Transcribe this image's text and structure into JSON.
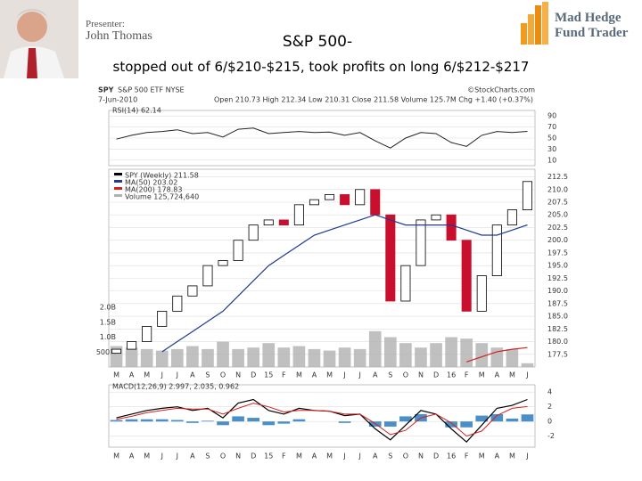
{
  "header": {
    "presenter_label": "Presenter:",
    "presenter_name": "John Thomas",
    "logo_line1": "Mad Hedge",
    "logo_line2": "Fund Trader"
  },
  "title": "S&P 500-",
  "subtitle": "stopped out of 6/$210-$215, took profits on long 6/$212-$217",
  "chart_data": [
    {
      "type": "line",
      "title": "RSI(14) 62.14",
      "ylim": [
        0,
        100
      ],
      "yticks": [
        90,
        70,
        50,
        30,
        10
      ],
      "series": [
        {
          "color": "#222222",
          "values": [
            48,
            55,
            60,
            62,
            65,
            58,
            60,
            52,
            66,
            68,
            58,
            60,
            62,
            60,
            61,
            55,
            60,
            45,
            32,
            50,
            60,
            58,
            42,
            35,
            55,
            62,
            60,
            62.14
          ]
        }
      ]
    },
    {
      "type": "candlestick",
      "symbol": "SPY",
      "name": "S&P 500 ETF NYSE",
      "date": "7-Jun-2010",
      "quote": "Open 210.73 High 212.34 Low 210.31 Close 211.58 Volume 125.7M Chg +1.40 (+0.37%)",
      "source": "©StockCharts.com",
      "categories": [
        "M",
        "A",
        "M",
        "J",
        "J",
        "A",
        "S",
        "O",
        "N",
        "D",
        "15",
        "F",
        "M",
        "A",
        "M",
        "J",
        "J",
        "A",
        "S",
        "O",
        "N",
        "D",
        "16",
        "F",
        "M",
        "A",
        "M",
        "J"
      ],
      "ylim": [
        175,
        214
      ],
      "yticks": [
        212.5,
        {
          "value": 210,
          "label": "210.0"
        },
        207.5,
        {
          "value": 205,
          "label": "205.0"
        },
        202.5,
        {
          "value": 200,
          "label": "200.0"
        },
        197.5,
        {
          "value": 195,
          "label": "195.0"
        },
        192.5,
        {
          "value": 190,
          "label": "190.0"
        },
        187.5,
        {
          "value": 185,
          "label": "185.0"
        },
        182.5,
        {
          "value": 180,
          "label": "180.0"
        },
        177.5
      ],
      "y2lim": [
        0,
        2000000000
      ],
      "y2ticks": [
        {
          "value": 2000000000,
          "label": "2.0B"
        },
        {
          "value": 1500000000,
          "label": "1.5B"
        },
        {
          "value": 1000000000,
          "label": "1.0B"
        },
        {
          "value": 500000000,
          "label": "500M"
        }
      ],
      "up_color": "#ffffff",
      "down_color": "#c8102e",
      "series": [
        {
          "name": "SPY (Weekly) 211.58",
          "color": "#000000",
          "values": [
            178.5,
            180,
            183,
            186,
            189,
            191,
            195,
            196,
            200,
            203,
            204,
            203,
            207,
            208,
            209,
            207,
            210,
            205,
            188,
            195,
            204,
            205,
            200,
            186,
            193,
            203,
            206,
            211.58
          ]
        },
        {
          "name": "MA(50) 203.02",
          "color": "#1f3a93",
          "values": [
            null,
            null,
            null,
            178,
            180,
            182,
            184,
            186,
            189,
            192,
            195,
            197,
            199,
            201,
            202,
            203,
            204,
            205,
            204,
            203,
            203,
            203,
            203,
            202,
            201,
            201,
            202,
            203.02
          ]
        },
        {
          "name": "MA(200) 178.83",
          "color": "#d42020",
          "values": [
            null,
            null,
            null,
            null,
            null,
            null,
            null,
            null,
            null,
            null,
            null,
            null,
            null,
            null,
            null,
            null,
            null,
            null,
            null,
            null,
            null,
            null,
            null,
            176,
            177,
            178,
            178.5,
            178.83
          ]
        },
        {
          "name": "Volume 125,724,640",
          "color": "#b0b0b0",
          "axis": "y2",
          "values": [
            700000000,
            650000000,
            600000000,
            550000000,
            600000000,
            700000000,
            600000000,
            850000000,
            600000000,
            650000000,
            800000000,
            650000000,
            700000000,
            600000000,
            550000000,
            650000000,
            600000000,
            1200000000,
            1000000000,
            800000000,
            650000000,
            800000000,
            1000000000,
            950000000,
            800000000,
            650000000,
            600000000,
            125724640
          ]
        }
      ]
    },
    {
      "type": "macd",
      "title": "MACD(12,26,9) 2.997, 2.035, 0.962",
      "categories": [
        "M",
        "A",
        "M",
        "J",
        "J",
        "A",
        "S",
        "O",
        "N",
        "D",
        "15",
        "F",
        "M",
        "A",
        "M",
        "J",
        "J",
        "A",
        "S",
        "O",
        "N",
        "D",
        "16",
        "F",
        "M",
        "A",
        "M",
        "J"
      ],
      "ylim": [
        -3.5,
        5
      ],
      "yticks": [
        4,
        2,
        0,
        -2
      ],
      "series": [
        {
          "color": "#000000",
          "values": [
            0.5,
            1.0,
            1.5,
            1.8,
            2.0,
            1.5,
            1.8,
            0.5,
            2.5,
            3.0,
            1.5,
            1.0,
            1.8,
            1.5,
            1.4,
            0.8,
            1.0,
            -1.0,
            -2.5,
            -0.5,
            1.5,
            1.0,
            -1.0,
            -2.8,
            -0.5,
            1.8,
            2.2,
            2.997
          ]
        },
        {
          "color": "#d42020",
          "values": [
            0.3,
            0.7,
            1.2,
            1.5,
            1.8,
            1.7,
            1.7,
            1.0,
            1.8,
            2.5,
            2.0,
            1.3,
            1.5,
            1.5,
            1.4,
            1.0,
            1.0,
            -0.3,
            -1.8,
            -1.2,
            0.5,
            1.0,
            -0.2,
            -2.0,
            -1.3,
            0.8,
            1.8,
            2.035
          ]
        },
        {
          "color": "#4a8fc8",
          "values": [
            0.2,
            0.3,
            0.3,
            0.3,
            0.2,
            -0.2,
            0.1,
            -0.5,
            0.7,
            0.5,
            -0.5,
            -0.3,
            0.3,
            0,
            0,
            -0.2,
            0,
            -0.7,
            -0.7,
            0.7,
            1.0,
            0,
            -0.8,
            -0.8,
            0.8,
            1.0,
            0.4,
            0.962
          ]
        }
      ]
    }
  ]
}
